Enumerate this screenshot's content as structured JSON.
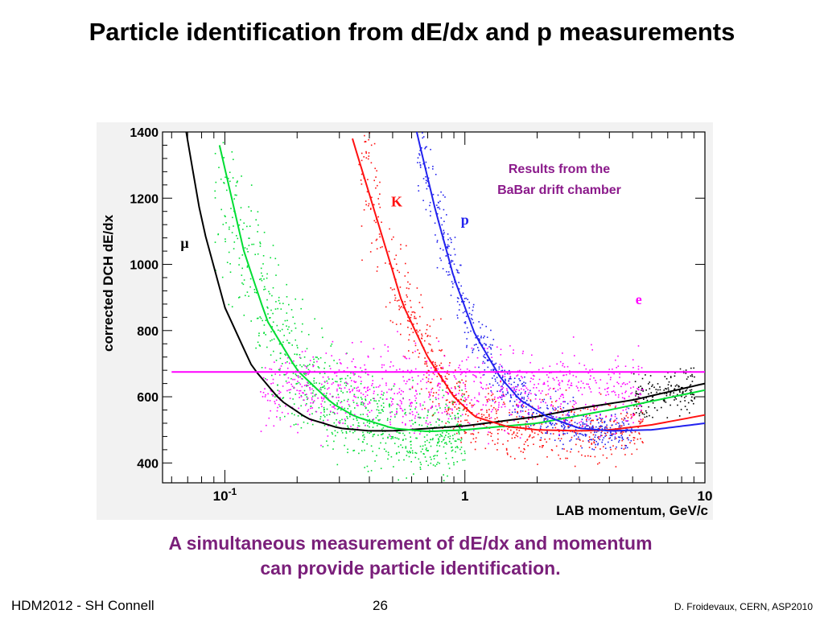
{
  "slide": {
    "title": "Particle identification from dE/dx and p measurements",
    "caption_line1": "A simultaneous measurement of dE/dx and momentum",
    "caption_line2": "can provide particle identification.",
    "footer_left": "HDM2012 - SH Connell",
    "footer_center": "26",
    "footer_right": "D. Froidevaux, CERN, ASP2010"
  },
  "chart_data": {
    "type": "scatter",
    "ylabel": "corrected DCH dE/dx",
    "xlabel": "LAB momentum, GeV/c",
    "x_scale": "log",
    "xlim": [
      0.055,
      10
    ],
    "ylim": [
      340,
      1400
    ],
    "x_ticks": [
      {
        "value": 0.1,
        "label": "10-1"
      },
      {
        "value": 1,
        "label": "1"
      },
      {
        "value": 10,
        "label": "10"
      }
    ],
    "y_ticks": [
      400,
      600,
      800,
      1000,
      1200,
      1400
    ],
    "annotation": [
      "Results from the",
      "BaBar drift chamber"
    ],
    "reference_line": {
      "y": 675,
      "color": "#ff00ff"
    },
    "colors": {
      "mu": "#000000",
      "pi": "#00dd33",
      "K": "#ff1111",
      "p": "#2222ee",
      "e": "#ff00ff"
    },
    "series": [
      {
        "name": "μ",
        "color": "#000000",
        "label_pos": {
          "x": 0.068,
          "y": 1050
        },
        "curve": [
          [
            0.069,
            1400
          ],
          [
            0.08,
            1130
          ],
          [
            0.1,
            870
          ],
          [
            0.13,
            690
          ],
          [
            0.17,
            590
          ],
          [
            0.22,
            535
          ],
          [
            0.3,
            505
          ],
          [
            0.4,
            497
          ],
          [
            0.5,
            497
          ],
          [
            1,
            512
          ],
          [
            2,
            540
          ],
          [
            3,
            565
          ],
          [
            5,
            590
          ],
          [
            10,
            640
          ]
        ]
      },
      {
        "name": "",
        "color": "#00dd33",
        "label_pos": {
          "x": 0.145,
          "y": 1050
        },
        "curve": [
          [
            0.095,
            1360
          ],
          [
            0.12,
            1040
          ],
          [
            0.15,
            830
          ],
          [
            0.2,
            680
          ],
          [
            0.28,
            580
          ],
          [
            0.35,
            540
          ],
          [
            0.5,
            505
          ],
          [
            0.7,
            495
          ],
          [
            1,
            500
          ],
          [
            2,
            520
          ],
          [
            4,
            560
          ],
          [
            10,
            620
          ]
        ]
      },
      {
        "name": "K",
        "color": "#ff1111",
        "label_pos": {
          "x": 0.52,
          "y": 1175
        },
        "curve": [
          [
            0.34,
            1380
          ],
          [
            0.45,
            1090
          ],
          [
            0.55,
            880
          ],
          [
            0.7,
            720
          ],
          [
            0.9,
            600
          ],
          [
            1.1,
            540
          ],
          [
            1.5,
            510
          ],
          [
            2,
            500
          ],
          [
            3,
            497
          ],
          [
            4,
            500
          ],
          [
            6,
            515
          ],
          [
            10,
            545
          ]
        ]
      },
      {
        "name": "p",
        "color": "#2222ee",
        "label_pos": {
          "x": 1.0,
          "y": 1120
        },
        "curve": [
          [
            0.63,
            1400
          ],
          [
            0.75,
            1170
          ],
          [
            0.9,
            960
          ],
          [
            1.1,
            790
          ],
          [
            1.4,
            660
          ],
          [
            1.7,
            590
          ],
          [
            2.2,
            540
          ],
          [
            3,
            505
          ],
          [
            4,
            497
          ],
          [
            6,
            500
          ],
          [
            10,
            520
          ]
        ]
      },
      {
        "name": "e",
        "color": "#ff00ff",
        "label_pos": {
          "x": 5.3,
          "y": 880
        },
        "curve": [
          [
            0.06,
            675
          ],
          [
            10,
            675
          ]
        ]
      }
    ]
  }
}
